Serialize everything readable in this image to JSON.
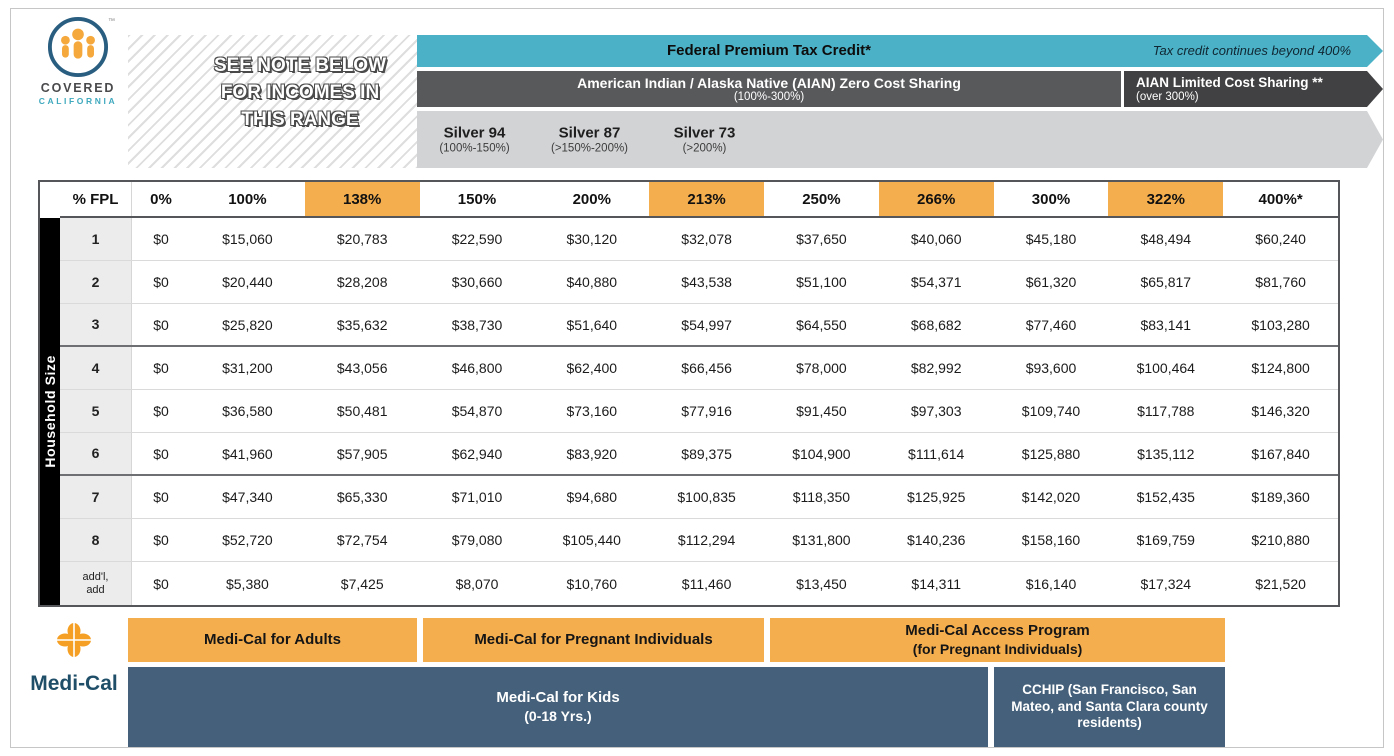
{
  "logo": {
    "covered": "COVERED",
    "california": "CALIFORNIA",
    "tm": "™"
  },
  "banners": {
    "note": "SEE NOTE BELOW\nFOR INCOMES IN\nTHIS RANGE",
    "federal": {
      "label": "Federal Premium Tax Credit*",
      "note": "Tax credit continues beyond 400%"
    },
    "aian_zero": {
      "label": "American Indian / Alaska Native (AIAN) Zero Cost Sharing",
      "range": "(100%-300%)"
    },
    "aian_limited": {
      "label": "AIAN Limited Cost Sharing **",
      "range": "(over 300%)"
    },
    "silver_plans": [
      {
        "name": "Silver 94",
        "range": "(100%-150%)"
      },
      {
        "name": "Silver 87",
        "range": "(>150%-200%)"
      },
      {
        "name": "Silver 73",
        "range": "(>200%)"
      }
    ]
  },
  "chart_data": {
    "type": "table",
    "corner_label": "% FPL",
    "side_label": "Household Size",
    "columns": [
      {
        "label": "0%",
        "highlight": false
      },
      {
        "label": "100%",
        "highlight": false
      },
      {
        "label": "138%",
        "highlight": true
      },
      {
        "label": "150%",
        "highlight": false
      },
      {
        "label": "200%",
        "highlight": false
      },
      {
        "label": "213%",
        "highlight": true
      },
      {
        "label": "250%",
        "highlight": false
      },
      {
        "label": "266%",
        "highlight": true
      },
      {
        "label": "300%",
        "highlight": false
      },
      {
        "label": "322%",
        "highlight": true
      },
      {
        "label": "400%*",
        "highlight": false
      }
    ],
    "rows": [
      {
        "label": "1",
        "values": [
          "$0",
          "$15,060",
          "$20,783",
          "$22,590",
          "$30,120",
          "$32,078",
          "$37,650",
          "$40,060",
          "$45,180",
          "$48,494",
          "$60,240"
        ]
      },
      {
        "label": "2",
        "values": [
          "$0",
          "$20,440",
          "$28,208",
          "$30,660",
          "$40,880",
          "$43,538",
          "$51,100",
          "$54,371",
          "$61,320",
          "$65,817",
          "$81,760"
        ]
      },
      {
        "label": "3",
        "values": [
          "$0",
          "$25,820",
          "$35,632",
          "$38,730",
          "$51,640",
          "$54,997",
          "$64,550",
          "$68,682",
          "$77,460",
          "$83,141",
          "$103,280"
        ]
      },
      {
        "label": "4",
        "values": [
          "$0",
          "$31,200",
          "$43,056",
          "$46,800",
          "$62,400",
          "$66,456",
          "$78,000",
          "$82,992",
          "$93,600",
          "$100,464",
          "$124,800"
        ]
      },
      {
        "label": "5",
        "values": [
          "$0",
          "$36,580",
          "$50,481",
          "$54,870",
          "$73,160",
          "$77,916",
          "$91,450",
          "$97,303",
          "$109,740",
          "$117,788",
          "$146,320"
        ]
      },
      {
        "label": "6",
        "values": [
          "$0",
          "$41,960",
          "$57,905",
          "$62,940",
          "$83,920",
          "$89,375",
          "$104,900",
          "$111,614",
          "$125,880",
          "$135,112",
          "$167,840"
        ]
      },
      {
        "label": "7",
        "values": [
          "$0",
          "$47,340",
          "$65,330",
          "$71,010",
          "$94,680",
          "$100,835",
          "$118,350",
          "$125,925",
          "$142,020",
          "$152,435",
          "$189,360"
        ]
      },
      {
        "label": "8",
        "values": [
          "$0",
          "$52,720",
          "$72,754",
          "$79,080",
          "$105,440",
          "$112,294",
          "$131,800",
          "$140,236",
          "$158,160",
          "$169,759",
          "$210,880"
        ]
      },
      {
        "label": "add'l,\nadd",
        "values": [
          "$0",
          "$5,380",
          "$7,425",
          "$8,070",
          "$10,760",
          "$11,460",
          "$13,450",
          "$14,311",
          "$16,140",
          "$17,324",
          "$21,520"
        ]
      }
    ]
  },
  "medical": {
    "wordmark": "Medi-Cal",
    "adults": "Medi-Cal for Adults",
    "pregnant": "Medi-Cal for Pregnant Individuals",
    "access_line1": "Medi-Cal Access Program",
    "access_line2": "(for Pregnant Individuals)",
    "kids_line1": "Medi-Cal for Kids",
    "kids_line2": "(0-18 Yrs.)",
    "cchip": "CCHIP (San Francisco, San Mateo, and Santa Clara county residents)"
  },
  "colors": {
    "teal": "#4BB1C6",
    "band_gray": "#58595B",
    "band_dark": "#414042",
    "band_silver": "#D2D3D5",
    "orange": "#F5AE4E",
    "navy": "#44607A",
    "black_bar": "#000000"
  }
}
